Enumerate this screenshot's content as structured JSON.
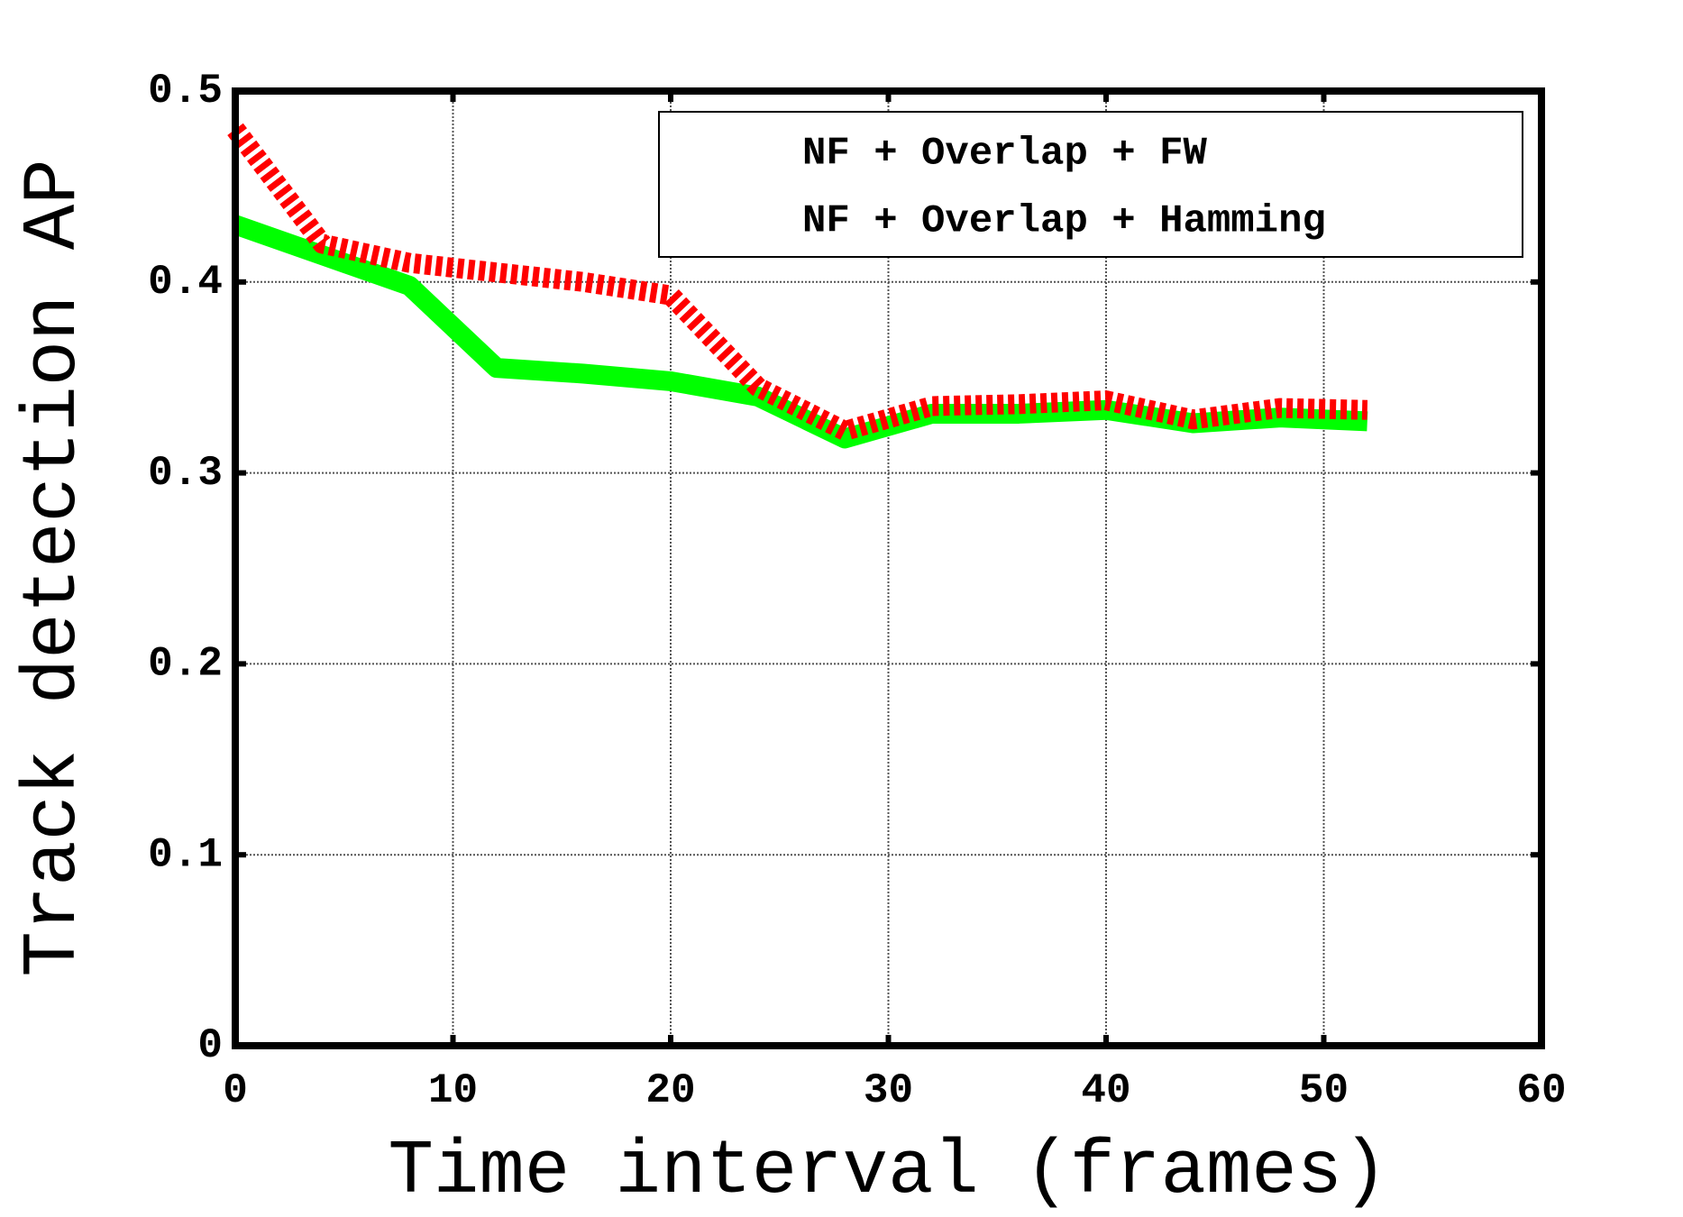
{
  "chart_data": {
    "type": "line",
    "xlabel": "Time interval (frames)",
    "ylabel": "Track detection AP",
    "x": [
      0,
      4,
      8,
      12,
      16,
      20,
      24,
      28,
      32,
      36,
      40,
      44,
      48,
      52
    ],
    "series": [
      {
        "name": "NF + Overlap + FW",
        "color": "#ff0000",
        "dashed": true,
        "values": [
          0.48,
          0.42,
          0.41,
          0.405,
          0.4,
          0.393,
          0.345,
          0.322,
          0.335,
          0.336,
          0.338,
          0.328,
          0.334,
          0.333
        ]
      },
      {
        "name": "NF + Overlap + Hamming",
        "color": "#00ff00",
        "dashed": false,
        "values": [
          0.43,
          0.414,
          0.398,
          0.355,
          0.352,
          0.348,
          0.34,
          0.318,
          0.331,
          0.331,
          0.333,
          0.326,
          0.329,
          0.327
        ]
      }
    ],
    "xlim": [
      0,
      60
    ],
    "xticks": [
      0,
      10,
      20,
      30,
      40,
      50,
      60
    ],
    "ylim": [
      0,
      0.5
    ],
    "yticks": [
      0,
      0.1,
      0.2,
      0.3,
      0.4,
      0.5
    ],
    "grid": true,
    "legend": "upper right"
  }
}
